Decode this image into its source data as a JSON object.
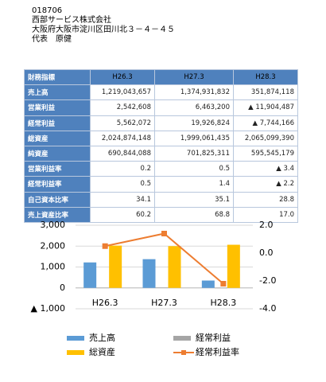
{
  "header": {
    "code": "018706",
    "company": "西部サービス株式会社",
    "address": "大阪府大阪市淀川区田川北３－４－４５",
    "representative": "代表　原健"
  },
  "table": {
    "header": [
      "財務指標",
      "H26.3",
      "H27.3",
      "H28.3"
    ],
    "rows": [
      [
        "売上高",
        "1,219,043,657",
        "1,374,931,832",
        "351,874,118"
      ],
      [
        "営業利益",
        "2,542,608",
        "6,463,200",
        "▲ 11,904,487"
      ],
      [
        "経常利益",
        "5,562,072",
        "19,926,824",
        "▲ 7,744,166"
      ],
      [
        "総資産",
        "2,024,874,148",
        "1,999,061,435",
        "2,065,099,390"
      ],
      [
        "純資産",
        "690,844,088",
        "701,825,311",
        "595,545,179"
      ],
      [
        "営業利益率",
        "0.2",
        "0.5",
        "▲ 3.4"
      ],
      [
        "経常利益率",
        "0.5",
        "1.4",
        "▲ 2.2"
      ],
      [
        "自己資本比率",
        "34.1",
        "35.1",
        "28.8"
      ],
      [
        "売上資産比率",
        "60.2",
        "68.8",
        "17.0"
      ]
    ]
  },
  "chart_data": {
    "type": "bar-line",
    "categories": [
      "H26.3",
      "H27.3",
      "H28.3"
    ],
    "series": [
      {
        "name": "売上高",
        "color": "#5b9bd5",
        "type": "bar",
        "values": [
          1219,
          1375,
          352
        ]
      },
      {
        "name": "経常利益",
        "color": "#a5a5a5",
        "type": "bar",
        "values": [
          5.6,
          19.9,
          -7.7
        ]
      },
      {
        "name": "総資産",
        "color": "#ffc000",
        "type": "bar",
        "values": [
          2025,
          1999,
          2065
        ]
      },
      {
        "name": "経常利益率",
        "color": "#ed7d31",
        "type": "line",
        "axis": "y2",
        "values": [
          0.5,
          1.4,
          -2.2
        ]
      }
    ],
    "ylim": [
      -1000,
      3000
    ],
    "yticks": [
      {
        "value": 3000,
        "label": "3,000"
      },
      {
        "value": 2000,
        "label": "2,000"
      },
      {
        "value": 1000,
        "label": "1,000"
      },
      0,
      {
        "value": -1000,
        "label": "▲ 1,000"
      }
    ],
    "y2lim": [
      -4,
      2
    ],
    "y2ticks": [
      {
        "value": 2,
        "label": "2.0"
      },
      {
        "value": 0,
        "label": "0.0"
      },
      {
        "value": -2,
        "label": "-2.0"
      },
      {
        "value": -4,
        "label": "-4.0"
      }
    ],
    "grid": true
  }
}
